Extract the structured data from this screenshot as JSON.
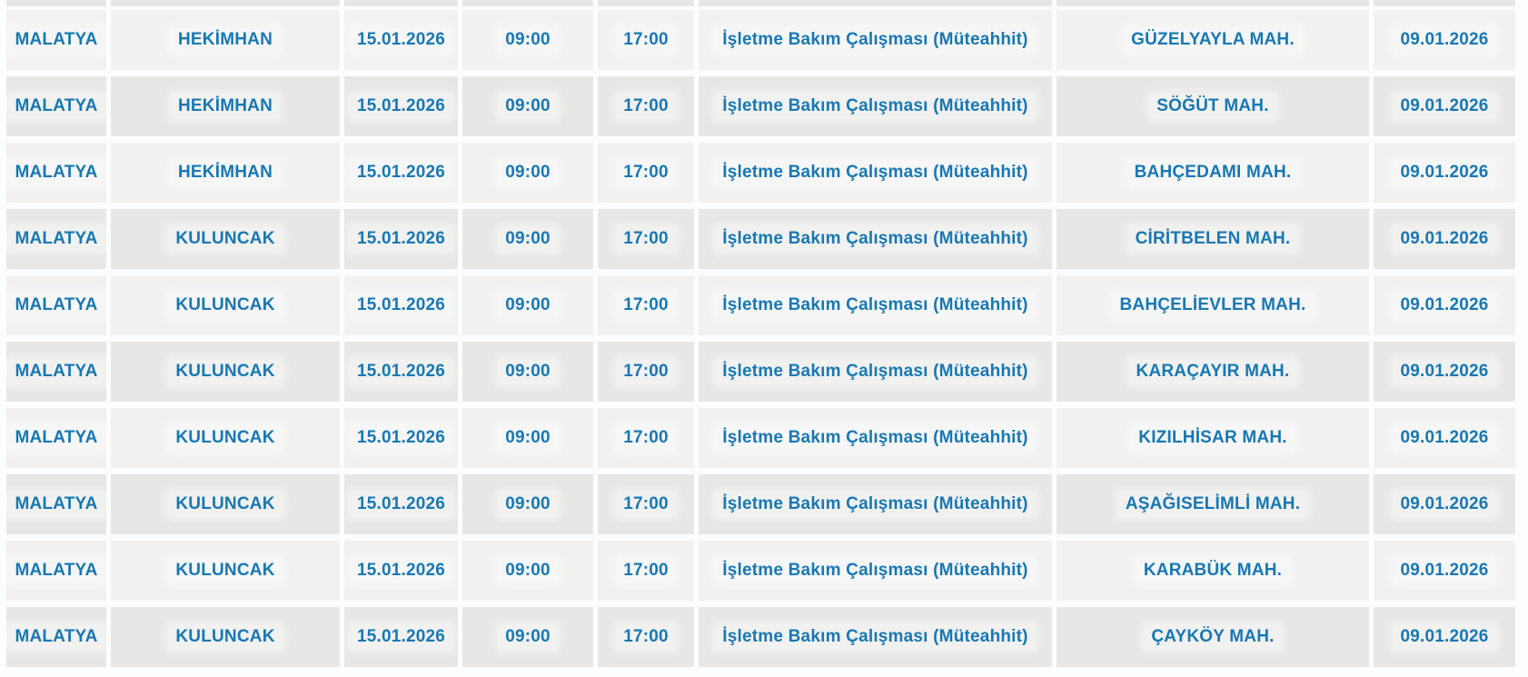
{
  "page": {
    "background_color": "#fcfdfd"
  },
  "table": {
    "text_color": "#1878b2",
    "row_colors": {
      "light": "#f1f1f0",
      "dark": "#e7e7e5"
    },
    "columns": [
      "city",
      "district",
      "date",
      "start_time",
      "end_time",
      "description",
      "neighborhood",
      "date2"
    ],
    "rows": [
      {
        "city": "MALATYA",
        "district": "HEKİMHAN",
        "date": "15.01.2026",
        "start_time": "09:00",
        "end_time": "17:00",
        "description": "İşletme Bakım Çalışması (Müteahhit)",
        "neighborhood": "GÜZELYAYLA MAH.",
        "date2": "09.01.2026"
      },
      {
        "city": "MALATYA",
        "district": "HEKİMHAN",
        "date": "15.01.2026",
        "start_time": "09:00",
        "end_time": "17:00",
        "description": "İşletme Bakım Çalışması (Müteahhit)",
        "neighborhood": "SÖĞÜT MAH.",
        "date2": "09.01.2026"
      },
      {
        "city": "MALATYA",
        "district": "HEKİMHAN",
        "date": "15.01.2026",
        "start_time": "09:00",
        "end_time": "17:00",
        "description": "İşletme Bakım Çalışması (Müteahhit)",
        "neighborhood": "BAHÇEDAMI MAH.",
        "date2": "09.01.2026"
      },
      {
        "city": "MALATYA",
        "district": "KULUNCAK",
        "date": "15.01.2026",
        "start_time": "09:00",
        "end_time": "17:00",
        "description": "İşletme Bakım Çalışması (Müteahhit)",
        "neighborhood": "CİRİTBELEN MAH.",
        "date2": "09.01.2026"
      },
      {
        "city": "MALATYA",
        "district": "KULUNCAK",
        "date": "15.01.2026",
        "start_time": "09:00",
        "end_time": "17:00",
        "description": "İşletme Bakım Çalışması (Müteahhit)",
        "neighborhood": "BAHÇELİEVLER MAH.",
        "date2": "09.01.2026"
      },
      {
        "city": "MALATYA",
        "district": "KULUNCAK",
        "date": "15.01.2026",
        "start_time": "09:00",
        "end_time": "17:00",
        "description": "İşletme Bakım Çalışması (Müteahhit)",
        "neighborhood": "KARAÇAYIR MAH.",
        "date2": "09.01.2026"
      },
      {
        "city": "MALATYA",
        "district": "KULUNCAK",
        "date": "15.01.2026",
        "start_time": "09:00",
        "end_time": "17:00",
        "description": "İşletme Bakım Çalışması (Müteahhit)",
        "neighborhood": "KIZILHİSAR MAH.",
        "date2": "09.01.2026"
      },
      {
        "city": "MALATYA",
        "district": "KULUNCAK",
        "date": "15.01.2026",
        "start_time": "09:00",
        "end_time": "17:00",
        "description": "İşletme Bakım Çalışması (Müteahhit)",
        "neighborhood": "AŞAĞISELİMLİ MAH.",
        "date2": "09.01.2026"
      },
      {
        "city": "MALATYA",
        "district": "KULUNCAK",
        "date": "15.01.2026",
        "start_time": "09:00",
        "end_time": "17:00",
        "description": "İşletme Bakım Çalışması (Müteahhit)",
        "neighborhood": "KARABÜK MAH.",
        "date2": "09.01.2026"
      },
      {
        "city": "MALATYA",
        "district": "KULUNCAK",
        "date": "15.01.2026",
        "start_time": "09:00",
        "end_time": "17:00",
        "description": "İşletme Bakım Çalışması (Müteahhit)",
        "neighborhood": "ÇAYKÖY MAH.",
        "date2": "09.01.2026"
      }
    ]
  }
}
